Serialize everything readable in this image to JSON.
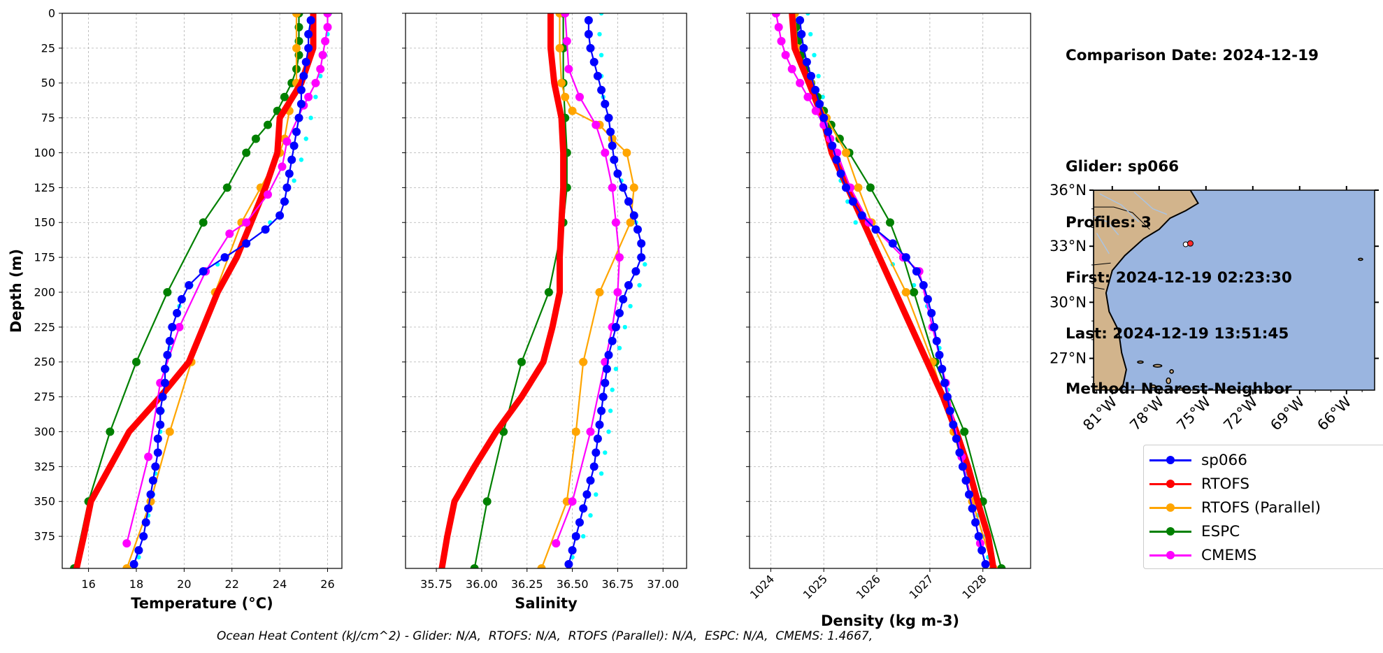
{
  "info": {
    "date_line": "Comparison Date: 2024-12-19",
    "glider_line": "Glider: sp066",
    "profiles_line": "Profiles: 3",
    "first_line": "First: 2024-12-19 02:23:30",
    "last_line": "Last: 2024-12-19 13:51:45",
    "method_line": "Method: Nearest-Neighbor"
  },
  "caption": "Ocean Heat Content (kJ/cm^2) - Glider: N/A,  RTOFS: N/A,  RTOFS (Parallel): N/A,  ESPC: N/A,  CMEMS: 1.4667,",
  "legend": [
    {
      "name": "sp066",
      "color": "#0000ff"
    },
    {
      "name": "RTOFS",
      "color": "#ff0000"
    },
    {
      "name": "RTOFS (Parallel)",
      "color": "#ffa500"
    },
    {
      "name": "ESPC",
      "color": "#008000"
    },
    {
      "name": "CMEMS",
      "color": "#ff00ff"
    }
  ],
  "map": {
    "lat_ticks": [
      "36°N",
      "33°N",
      "30°N",
      "27°N"
    ],
    "lon_ticks": [
      "81°W",
      "78°W",
      "75°W",
      "72°W",
      "69°W",
      "66°W"
    ],
    "land_color": "#d2b48c",
    "ocean_color": "#9ab5e0"
  },
  "chart_data": [
    {
      "type": "line",
      "xlabel": "Temperature (°C)",
      "ylabel": "Depth (m)",
      "xlim": [
        14.9,
        26.6
      ],
      "ylim": [
        398,
        0
      ],
      "x_ticks": [
        16,
        18,
        20,
        22,
        24,
        26
      ],
      "y_ticks": [
        0,
        25,
        50,
        75,
        100,
        125,
        150,
        175,
        200,
        225,
        250,
        275,
        300,
        325,
        350,
        375
      ],
      "grid": true,
      "series": [
        {
          "name": "sp066",
          "color": "#0000ff",
          "depth": [
            5,
            15,
            25,
            35,
            45,
            55,
            65,
            75,
            85,
            95,
            105,
            115,
            125,
            135,
            145,
            155,
            165,
            175,
            185,
            195,
            205,
            215,
            225,
            235,
            245,
            255,
            265,
            275,
            285,
            295,
            305,
            315,
            325,
            335,
            345,
            355,
            365,
            375,
            385,
            395
          ],
          "values": [
            25.3,
            25.2,
            25.2,
            25.1,
            25.0,
            24.9,
            24.9,
            24.8,
            24.7,
            24.6,
            24.5,
            24.4,
            24.3,
            24.2,
            24.0,
            23.4,
            22.6,
            21.7,
            20.8,
            20.2,
            19.9,
            19.7,
            19.5,
            19.4,
            19.3,
            19.2,
            19.2,
            19.1,
            19.0,
            19.0,
            18.9,
            18.9,
            18.8,
            18.7,
            18.6,
            18.5,
            18.4,
            18.3,
            18.1,
            17.9
          ]
        },
        {
          "name": "RTOFS",
          "color": "#ff0000",
          "depth": [
            0,
            25,
            50,
            75,
            100,
            125,
            150,
            175,
            200,
            225,
            250,
            275,
            300,
            325,
            350,
            375,
            398
          ],
          "values": [
            25.4,
            25.4,
            24.9,
            24.0,
            23.9,
            23.4,
            22.8,
            22.2,
            21.4,
            20.8,
            20.2,
            19.0,
            17.7,
            16.9,
            16.1,
            15.8,
            15.5
          ]
        },
        {
          "name": "RTOFS (Parallel)",
          "color": "#ffa500",
          "depth": [
            0,
            25,
            50,
            70,
            90,
            100,
            125,
            150,
            200,
            250,
            300,
            350,
            398
          ],
          "values": [
            24.7,
            24.7,
            24.7,
            24.4,
            24.2,
            24.0,
            23.2,
            22.4,
            21.3,
            20.3,
            19.4,
            18.6,
            17.6
          ]
        },
        {
          "name": "ESPC",
          "color": "#008000",
          "depth": [
            0,
            10,
            20,
            30,
            40,
            50,
            60,
            70,
            80,
            90,
            100,
            125,
            150,
            200,
            250,
            300,
            350,
            398
          ],
          "values": [
            24.8,
            24.8,
            24.8,
            24.8,
            24.7,
            24.5,
            24.2,
            23.9,
            23.5,
            23.0,
            22.6,
            21.8,
            20.8,
            19.3,
            18.0,
            16.9,
            16.0,
            15.4
          ]
        },
        {
          "name": "CMEMS",
          "color": "#ff00ff",
          "depth": [
            0,
            10,
            20,
            30,
            40,
            50,
            60,
            66,
            92,
            110,
            130,
            150,
            158,
            185,
            225,
            265,
            318,
            380
          ],
          "values": [
            26.0,
            26.0,
            25.9,
            25.8,
            25.7,
            25.5,
            25.2,
            25.0,
            24.3,
            24.1,
            23.5,
            22.6,
            21.9,
            20.9,
            19.8,
            19.0,
            18.5,
            17.6
          ]
        },
        {
          "name": "sp066 profiles",
          "color": "#00ffff",
          "depth": [
            0,
            15,
            30,
            45,
            60,
            75,
            90,
            105,
            120,
            135,
            150,
            165,
            180,
            195,
            210,
            225,
            240,
            255,
            270,
            285,
            300,
            315,
            330,
            345,
            360,
            375,
            390
          ],
          "values": [
            26.1,
            26.0,
            25.9,
            25.7,
            25.5,
            25.3,
            25.1,
            24.9,
            24.6,
            24.3,
            23.6,
            22.6,
            21.4,
            20.3,
            19.8,
            19.6,
            19.4,
            19.3,
            19.2,
            19.1,
            19.0,
            18.9,
            18.8,
            18.7,
            18.5,
            18.3,
            18.1
          ]
        }
      ]
    },
    {
      "type": "line",
      "xlabel": "Salinity",
      "xlim": [
        35.58,
        37.13
      ],
      "ylim": [
        398,
        0
      ],
      "x_ticks": [
        35.75,
        36.0,
        36.25,
        36.5,
        36.75,
        37.0
      ],
      "x_tick_labels": [
        "35.75",
        "36.00",
        "36.25",
        "36.50",
        "36.75",
        "37.00"
      ],
      "grid": true,
      "series": [
        {
          "name": "sp066",
          "color": "#0000ff",
          "depth": [
            5,
            15,
            25,
            35,
            45,
            55,
            65,
            75,
            85,
            95,
            105,
            115,
            125,
            135,
            145,
            155,
            165,
            175,
            185,
            195,
            205,
            215,
            225,
            235,
            245,
            255,
            265,
            275,
            285,
            295,
            305,
            315,
            325,
            335,
            345,
            355,
            365,
            375,
            385,
            395
          ],
          "values": [
            36.59,
            36.59,
            36.6,
            36.62,
            36.64,
            36.66,
            36.68,
            36.7,
            36.71,
            36.72,
            36.73,
            36.75,
            36.78,
            36.81,
            36.84,
            36.86,
            36.88,
            36.88,
            36.85,
            36.81,
            36.78,
            36.76,
            36.74,
            36.72,
            36.7,
            36.69,
            36.68,
            36.67,
            36.66,
            36.65,
            36.64,
            36.63,
            36.62,
            36.6,
            36.58,
            36.56,
            36.54,
            36.52,
            36.5,
            36.48
          ]
        },
        {
          "name": "RTOFS",
          "color": "#ff0000",
          "depth": [
            0,
            25,
            50,
            75,
            100,
            125,
            150,
            175,
            200,
            225,
            250,
            275,
            300,
            325,
            350,
            375,
            398
          ],
          "values": [
            36.38,
            36.38,
            36.4,
            36.44,
            36.45,
            36.45,
            36.44,
            36.43,
            36.43,
            36.39,
            36.34,
            36.22,
            36.08,
            35.96,
            35.85,
            35.81,
            35.78
          ]
        },
        {
          "name": "RTOFS (Parallel)",
          "color": "#ffa500",
          "depth": [
            0,
            25,
            50,
            60,
            70,
            80,
            90,
            100,
            125,
            150,
            200,
            250,
            300,
            350,
            398
          ],
          "values": [
            36.43,
            36.43,
            36.44,
            36.46,
            36.5,
            36.65,
            36.72,
            36.8,
            36.84,
            36.82,
            36.65,
            36.56,
            36.52,
            36.47,
            36.33
          ]
        },
        {
          "name": "ESPC",
          "color": "#008000",
          "depth": [
            0,
            25,
            50,
            75,
            100,
            125,
            150,
            200,
            250,
            300,
            350,
            398
          ],
          "values": [
            36.45,
            36.45,
            36.45,
            36.46,
            36.47,
            36.47,
            36.45,
            36.37,
            36.22,
            36.12,
            36.03,
            35.96
          ]
        },
        {
          "name": "CMEMS",
          "color": "#ff00ff",
          "depth": [
            0,
            20,
            40,
            60,
            80,
            100,
            125,
            150,
            175,
            200,
            225,
            250,
            300,
            350,
            380
          ],
          "values": [
            36.46,
            36.47,
            36.48,
            36.54,
            36.63,
            36.68,
            36.72,
            36.74,
            36.76,
            36.75,
            36.72,
            36.68,
            36.6,
            36.5,
            36.41
          ]
        },
        {
          "name": "sp066 profiles",
          "color": "#00ffff",
          "depth": [
            0,
            15,
            30,
            45,
            60,
            75,
            90,
            105,
            120,
            135,
            150,
            165,
            180,
            195,
            210,
            225,
            240,
            255,
            270,
            285,
            300,
            315,
            330,
            345,
            360,
            375,
            390
          ],
          "values": [
            36.66,
            36.65,
            36.66,
            36.66,
            36.67,
            36.7,
            36.72,
            36.74,
            36.77,
            36.81,
            36.85,
            36.89,
            36.9,
            36.87,
            36.82,
            36.79,
            36.76,
            36.74,
            36.72,
            36.71,
            36.7,
            36.68,
            36.66,
            36.63,
            36.6,
            36.56,
            36.5
          ]
        }
      ]
    },
    {
      "type": "line",
      "xlabel": "Density (kg m-3)",
      "xlim": [
        1023.6,
        1028.9
      ],
      "ylim": [
        398,
        0
      ],
      "x_ticks": [
        1024,
        1025,
        1026,
        1027,
        1028
      ],
      "grid": true,
      "series": [
        {
          "name": "sp066",
          "color": "#0000ff",
          "depth": [
            5,
            15,
            25,
            35,
            45,
            55,
            65,
            75,
            85,
            95,
            105,
            115,
            125,
            135,
            145,
            155,
            165,
            175,
            185,
            195,
            205,
            215,
            225,
            235,
            245,
            255,
            265,
            275,
            285,
            295,
            305,
            315,
            325,
            335,
            345,
            355,
            365,
            375,
            385,
            395
          ],
          "values": [
            1024.55,
            1024.58,
            1024.62,
            1024.68,
            1024.76,
            1024.84,
            1024.92,
            1025.0,
            1025.08,
            1025.16,
            1025.24,
            1025.32,
            1025.42,
            1025.55,
            1025.72,
            1025.98,
            1026.3,
            1026.55,
            1026.75,
            1026.88,
            1026.96,
            1027.03,
            1027.08,
            1027.13,
            1027.18,
            1027.23,
            1027.28,
            1027.33,
            1027.38,
            1027.44,
            1027.5,
            1027.56,
            1027.62,
            1027.68,
            1027.74,
            1027.8,
            1027.86,
            1027.92,
            1027.98,
            1028.05
          ]
        },
        {
          "name": "RTOFS",
          "color": "#ff0000",
          "depth": [
            0,
            25,
            50,
            75,
            100,
            125,
            150,
            175,
            200,
            225,
            250,
            275,
            300,
            325,
            350,
            375,
            398
          ],
          "values": [
            1024.4,
            1024.45,
            1024.72,
            1024.98,
            1025.15,
            1025.45,
            1025.75,
            1026.05,
            1026.35,
            1026.65,
            1026.95,
            1027.25,
            1027.5,
            1027.72,
            1027.9,
            1028.1,
            1028.2
          ]
        },
        {
          "name": "RTOFS (Parallel)",
          "color": "#ffa500",
          "depth": [
            0,
            25,
            50,
            75,
            100,
            125,
            150,
            200,
            250,
            300,
            350,
            398
          ],
          "values": [
            1024.45,
            1024.5,
            1024.75,
            1025.05,
            1025.42,
            1025.65,
            1025.9,
            1026.55,
            1027.05,
            1027.45,
            1027.8,
            1028.2
          ]
        },
        {
          "name": "ESPC",
          "color": "#008000",
          "depth": [
            0,
            10,
            20,
            30,
            40,
            50,
            60,
            70,
            80,
            90,
            100,
            125,
            150,
            175,
            200,
            250,
            300,
            350,
            398
          ],
          "values": [
            1024.45,
            1024.48,
            1024.52,
            1024.58,
            1024.66,
            1024.76,
            1024.88,
            1025.0,
            1025.14,
            1025.3,
            1025.48,
            1025.88,
            1026.25,
            1026.5,
            1026.7,
            1027.1,
            1027.65,
            1028.0,
            1028.35
          ]
        },
        {
          "name": "CMEMS",
          "color": "#ff00ff",
          "depth": [
            0,
            10,
            20,
            30,
            40,
            50,
            60,
            70,
            80,
            90,
            100,
            125,
            150,
            175,
            185,
            225,
            265,
            318,
            380
          ],
          "values": [
            1024.1,
            1024.15,
            1024.2,
            1024.28,
            1024.4,
            1024.55,
            1024.7,
            1024.85,
            1025.0,
            1025.12,
            1025.25,
            1025.5,
            1025.85,
            1026.5,
            1026.8,
            1027.05,
            1027.3,
            1027.6,
            1027.95
          ]
        },
        {
          "name": "sp066 profiles",
          "color": "#00ffff",
          "depth": [
            0,
            15,
            30,
            45,
            60,
            75,
            90,
            105,
            120,
            135,
            150,
            165,
            180,
            195,
            210,
            225,
            240,
            255,
            270,
            285,
            300,
            315,
            330,
            345,
            360,
            375,
            390
          ],
          "values": [
            1024.7,
            1024.75,
            1024.82,
            1024.9,
            1024.98,
            1025.06,
            1025.14,
            1025.22,
            1025.32,
            1025.45,
            1025.6,
            1025.9,
            1026.3,
            1026.7,
            1026.95,
            1027.08,
            1027.18,
            1027.26,
            1027.34,
            1027.42,
            1027.5,
            1027.6,
            1027.7,
            1027.8,
            1027.9,
            1028.0,
            1028.1
          ]
        }
      ]
    }
  ]
}
